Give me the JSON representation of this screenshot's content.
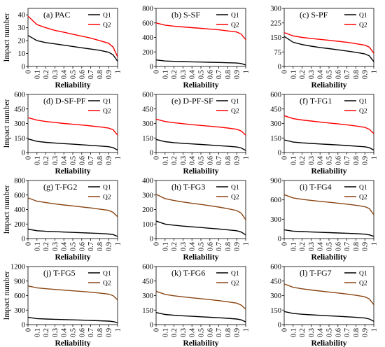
{
  "chart_data": [
    {
      "type": "line",
      "title": "(a) PAC",
      "xlabel": "Reliability",
      "ylabel": "Impact number",
      "ylim": [
        0,
        45
      ],
      "yticks": [
        0,
        10,
        20,
        30,
        40
      ],
      "series": [
        {
          "name": "Q1",
          "color": "#000000",
          "values": [
            24,
            20,
            18.5,
            17.5,
            16.5,
            15.5,
            14.5,
            13.5,
            12.5,
            11,
            9,
            4
          ]
        },
        {
          "name": "Q2",
          "color": "#ff0000",
          "values": [
            39,
            32.5,
            30,
            28,
            26.5,
            25,
            23.5,
            22,
            20,
            18,
            15,
            7.5
          ]
        }
      ]
    },
    {
      "type": "line",
      "title": "(b) S-SF",
      "xlabel": "",
      "ylabel": "",
      "ylim": [
        0,
        800
      ],
      "yticks": [
        0,
        200,
        400,
        600,
        800
      ],
      "series": [
        {
          "name": "Q1",
          "color": "#000000",
          "values": [
            90,
            75,
            70,
            67,
            64,
            61,
            58,
            55,
            51,
            47,
            40,
            20
          ]
        },
        {
          "name": "Q2",
          "color": "#ff0000",
          "values": [
            600,
            570,
            555,
            545,
            535,
            525,
            515,
            505,
            490,
            475,
            445,
            370
          ]
        }
      ]
    },
    {
      "type": "line",
      "title": "(c) S-PF",
      "xlabel": "",
      "ylabel": "",
      "ylim": [
        0,
        300
      ],
      "yticks": [
        0,
        75,
        150,
        225,
        300
      ],
      "series": [
        {
          "name": "Q1",
          "color": "#000000",
          "values": [
            155,
            125,
            113,
            105,
            98,
            92,
            86,
            80,
            73,
            65,
            55,
            25
          ]
        },
        {
          "name": "Q2",
          "color": "#ff0000",
          "values": [
            175,
            158,
            150,
            145,
            140,
            135,
            130,
            125,
            118,
            110,
            100,
            68
          ]
        }
      ]
    },
    {
      "type": "line",
      "title": "(d) D-SF-PF",
      "xlabel": "",
      "ylabel": "Impact number",
      "ylim": [
        0,
        600
      ],
      "yticks": [
        0,
        150,
        300,
        450,
        600
      ],
      "series": [
        {
          "name": "Q1",
          "color": "#000000",
          "values": [
            140,
            115,
            105,
            98,
            92,
            86,
            80,
            74,
            67,
            60,
            50,
            25
          ]
        },
        {
          "name": "Q2",
          "color": "#ff0000",
          "values": [
            360,
            335,
            320,
            310,
            300,
            292,
            284,
            275,
            265,
            252,
            235,
            180
          ]
        }
      ]
    },
    {
      "type": "line",
      "title": "(e) D-PF-SF",
      "xlabel": "",
      "ylabel": "",
      "ylim": [
        0,
        600
      ],
      "yticks": [
        0,
        150,
        300,
        450,
        600
      ],
      "series": [
        {
          "name": "Q1",
          "color": "#000000",
          "values": [
            135,
            112,
            102,
            95,
            89,
            83,
            77,
            71,
            64,
            57,
            47,
            22
          ]
        },
        {
          "name": "Q2",
          "color": "#ff0000",
          "values": [
            345,
            320,
            308,
            298,
            288,
            280,
            272,
            263,
            253,
            240,
            223,
            180
          ]
        }
      ]
    },
    {
      "type": "line",
      "title": "(f) T-FG1",
      "xlabel": "",
      "ylabel": "",
      "ylim": [
        0,
        600
      ],
      "yticks": [
        0,
        150,
        300,
        450,
        600
      ],
      "series": [
        {
          "name": "Q1",
          "color": "#000000",
          "values": [
            130,
            108,
            100,
            94,
            88,
            83,
            78,
            72,
            66,
            59,
            50,
            25
          ]
        },
        {
          "name": "Q2",
          "color": "#ff0000",
          "values": [
            380,
            350,
            336,
            325,
            315,
            305,
            296,
            286,
            274,
            260,
            240,
            195
          ]
        }
      ]
    },
    {
      "type": "line",
      "title": "(g) T-FG2",
      "xlabel": "",
      "ylabel": "Impact number",
      "ylim": [
        0,
        800
      ],
      "yticks": [
        0,
        200,
        400,
        600,
        800
      ],
      "series": [
        {
          "name": "Q1",
          "color": "#000000",
          "values": [
            130,
            108,
            100,
            95,
            90,
            85,
            80,
            75,
            70,
            63,
            55,
            30
          ]
        },
        {
          "name": "Q2",
          "color": "#8b4513",
          "values": [
            560,
            515,
            495,
            478,
            463,
            450,
            436,
            422,
            406,
            388,
            360,
            300
          ]
        }
      ]
    },
    {
      "type": "line",
      "title": "(h) T-FG3",
      "xlabel": "",
      "ylabel": "",
      "ylim": [
        0,
        400
      ],
      "yticks": [
        0,
        100,
        200,
        300,
        400
      ],
      "series": [
        {
          "name": "Q1",
          "color": "#000000",
          "values": [
            120,
            100,
            92,
            86,
            81,
            76,
            71,
            66,
            60,
            54,
            45,
            25
          ]
        },
        {
          "name": "Q2",
          "color": "#8b4513",
          "values": [
            305,
            275,
            262,
            252,
            243,
            235,
            226,
            217,
            206,
            193,
            175,
            130
          ]
        }
      ]
    },
    {
      "type": "line",
      "title": "(i) T-FG4",
      "xlabel": "",
      "ylabel": "",
      "ylim": [
        0,
        900
      ],
      "yticks": [
        0,
        300,
        600,
        900
      ],
      "series": [
        {
          "name": "Q1",
          "color": "#000000",
          "values": [
            135,
            115,
            108,
            102,
            97,
            92,
            87,
            82,
            76,
            68,
            58,
            35
          ]
        },
        {
          "name": "Q2",
          "color": "#8b4513",
          "values": [
            680,
            630,
            608,
            592,
            577,
            563,
            549,
            534,
            516,
            495,
            465,
            370
          ]
        }
      ]
    },
    {
      "type": "line",
      "title": "(j) T-FG5",
      "xlabel": "",
      "ylabel": "Impact number",
      "ylim": [
        0,
        1200
      ],
      "yticks": [
        0,
        300,
        600,
        900,
        1200
      ],
      "series": [
        {
          "name": "Q1",
          "color": "#000000",
          "values": [
            150,
            125,
            116,
            110,
            104,
            99,
            93,
            87,
            80,
            72,
            62,
            40
          ]
        },
        {
          "name": "Q2",
          "color": "#8b4513",
          "values": [
            800,
            760,
            742,
            727,
            713,
            699,
            685,
            670,
            652,
            630,
            598,
            510
          ]
        }
      ]
    },
    {
      "type": "line",
      "title": "(k) T-FG6",
      "xlabel": "",
      "ylabel": "",
      "ylim": [
        0,
        600
      ],
      "yticks": [
        0,
        150,
        300,
        450,
        600
      ],
      "series": [
        {
          "name": "Q1",
          "color": "#000000",
          "values": [
            125,
            105,
            97,
            91,
            86,
            81,
            76,
            71,
            65,
            58,
            49,
            28
          ]
        },
        {
          "name": "Q2",
          "color": "#8b4513",
          "values": [
            345,
            312,
            298,
            287,
            277,
            268,
            258,
            248,
            236,
            222,
            202,
            160
          ]
        }
      ]
    },
    {
      "type": "line",
      "title": "(l) T-FG7",
      "xlabel": "",
      "ylabel": "",
      "ylim": [
        0,
        600
      ],
      "yticks": [
        0,
        150,
        300,
        450,
        600
      ],
      "series": [
        {
          "name": "Q1",
          "color": "#000000",
          "values": [
            135,
            115,
            107,
            101,
            96,
            91,
            86,
            81,
            75,
            68,
            58,
            35
          ]
        },
        {
          "name": "Q2",
          "color": "#8b4513",
          "values": [
            420,
            385,
            370,
            358,
            347,
            337,
            327,
            316,
            303,
            288,
            265,
            205
          ]
        }
      ]
    }
  ],
  "x_values": [
    0,
    0.1,
    0.2,
    0.3,
    0.4,
    0.5,
    0.6,
    0.7,
    0.8,
    0.9,
    0.95,
    1
  ],
  "x_tick_labels": [
    "0",
    "0.1",
    "0.2",
    "0.3",
    "0.4",
    "0.5",
    "0.6",
    "0.7",
    "0.8",
    "0.9",
    "1"
  ],
  "x_tick_values": [
    0,
    0.1,
    0.2,
    0.3,
    0.4,
    0.5,
    0.6,
    0.7,
    0.8,
    0.9,
    1
  ],
  "shared_xlabel": "Reliability",
  "shared_ylabel": "Impact number"
}
